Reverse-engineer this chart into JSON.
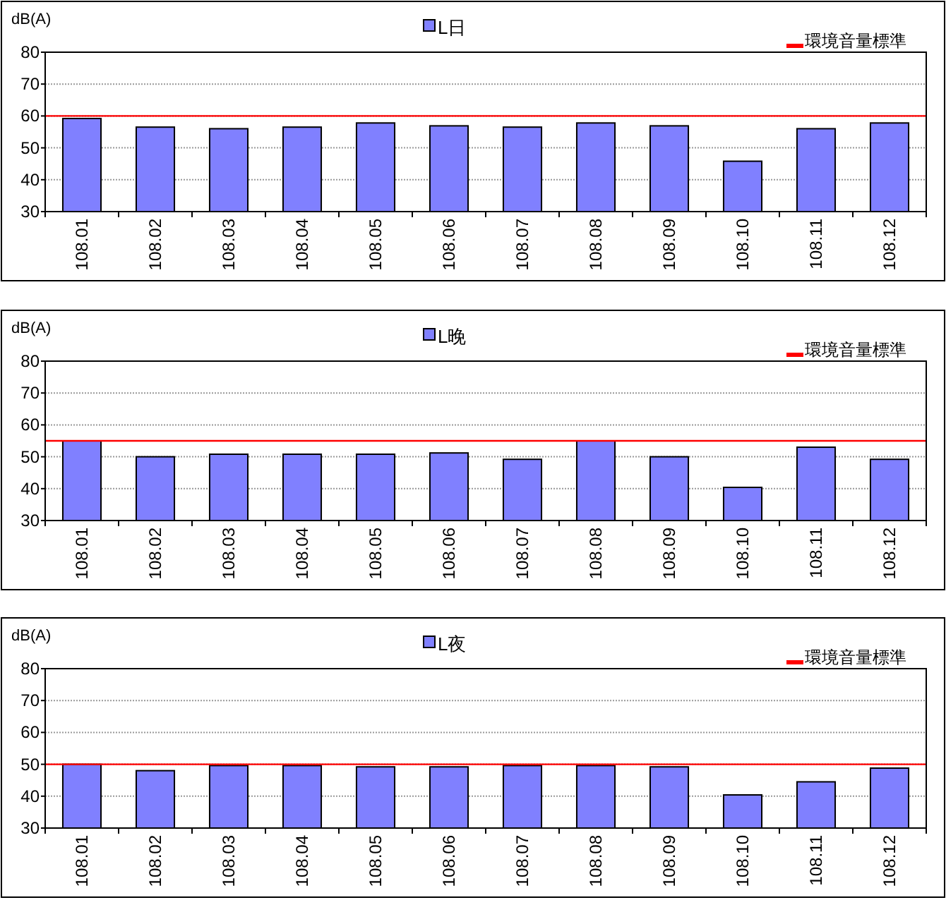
{
  "chart_data": [
    {
      "type": "bar",
      "ylabel": "dB(A)",
      "categories": [
        "108.01",
        "108.02",
        "108.03",
        "108.04",
        "108.05",
        "108.06",
        "108.07",
        "108.08",
        "108.09",
        "108.10",
        "108.11",
        "108.12"
      ],
      "series": [
        {
          "name": "L日",
          "color": "#8080ff",
          "values": [
            59.2,
            56.5,
            56,
            56.5,
            57.8,
            56.9,
            56.5,
            57.8,
            56.9,
            45.8,
            56,
            57.8
          ]
        }
      ],
      "ylim": [
        30,
        80
      ],
      "yticks": [
        30,
        40,
        50,
        60,
        70,
        80
      ],
      "grid": "y",
      "legend": "top",
      "ref_lines": [
        {
          "axis": "y",
          "value": 60,
          "label": "環境音量標準",
          "color": "#ff0000"
        }
      ]
    },
    {
      "type": "bar",
      "ylabel": "dB(A)",
      "categories": [
        "108.01",
        "108.02",
        "108.03",
        "108.04",
        "108.05",
        "108.06",
        "108.07",
        "108.08",
        "108.09",
        "108.10",
        "108.11",
        "108.12"
      ],
      "series": [
        {
          "name": "L晚",
          "color": "#8080ff",
          "values": [
            55,
            50,
            50.8,
            50.8,
            50.8,
            51.2,
            49.2,
            55,
            50,
            40.4,
            53,
            49.2
          ]
        }
      ],
      "ylim": [
        30,
        80
      ],
      "yticks": [
        30,
        40,
        50,
        60,
        70,
        80
      ],
      "grid": "y",
      "legend": "top",
      "ref_lines": [
        {
          "axis": "y",
          "value": 55,
          "label": "環境音量標準",
          "color": "#ff0000"
        }
      ]
    },
    {
      "type": "bar",
      "ylabel": "dB(A)",
      "categories": [
        "108.01",
        "108.02",
        "108.03",
        "108.04",
        "108.05",
        "108.06",
        "108.07",
        "108.08",
        "108.09",
        "108.10",
        "108.11",
        "108.12"
      ],
      "series": [
        {
          "name": "L夜",
          "color": "#8080ff",
          "values": [
            50,
            48,
            49.6,
            49.6,
            49.2,
            49.2,
            49.6,
            49.6,
            49.2,
            40.4,
            44.5,
            48.8
          ]
        }
      ],
      "ylim": [
        30,
        80
      ],
      "yticks": [
        30,
        40,
        50,
        60,
        70,
        80
      ],
      "grid": "y",
      "legend": "top",
      "ref_lines": [
        {
          "axis": "y",
          "value": 50,
          "label": "環境音量標準",
          "color": "#ff0000"
        }
      ]
    }
  ]
}
